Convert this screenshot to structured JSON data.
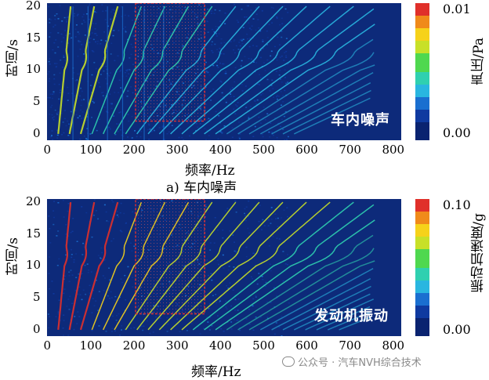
{
  "chart_data": [
    {
      "type": "heatmap",
      "annotation": "车内噪声",
      "caption": "a) 车内噪声",
      "xlabel": "频率/Hz",
      "ylabel": "时间/s",
      "colorbar_label": "声压/Pa",
      "colorbar_max_label": "0.01",
      "colorbar_min_label": "0.00",
      "xlim": [
        0,
        820
      ],
      "ylim": [
        -1,
        20.5
      ],
      "xticks": [
        "0",
        "100",
        "200",
        "300",
        "400",
        "500",
        "600",
        "700",
        "800"
      ],
      "yticks": [
        "0",
        "5",
        "10",
        "15",
        "20"
      ],
      "highlight_box": {
        "x": [
          205,
          365
        ],
        "y": [
          2,
          20.5
        ]
      }
    },
    {
      "type": "heatmap",
      "annotation": "发动机振动",
      "caption": "",
      "xlabel": "频率/Hz",
      "ylabel": "时间/s",
      "colorbar_label": "振动加速度/g",
      "colorbar_max_label": "0.10",
      "colorbar_min_label": "0.00",
      "xlim": [
        0,
        820
      ],
      "ylim": [
        -1,
        20.5
      ],
      "xticks": [
        "0",
        "100",
        "200",
        "300",
        "400",
        "500",
        "600",
        "700",
        "800"
      ],
      "yticks": [
        "0",
        "5",
        "10",
        "15",
        "20"
      ],
      "highlight_box": {
        "x": [
          205,
          365
        ],
        "y": [
          2.5,
          20.5
        ]
      }
    }
  ],
  "watermark": "公众号 · 汽车NVH综合技术",
  "colors": {
    "background": "#0d2a7a",
    "box": "#e03030",
    "scale": [
      "#0a2370",
      "#0f3aa0",
      "#1a6fd0",
      "#29b6e0",
      "#2fd0b0",
      "#4fd84f",
      "#c8e028",
      "#f6d21a",
      "#f08a1a",
      "#e0302a"
    ]
  }
}
